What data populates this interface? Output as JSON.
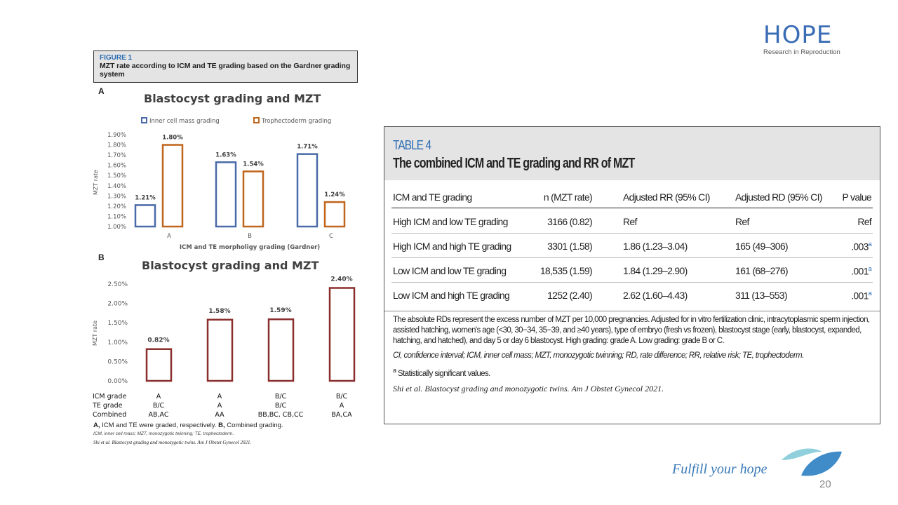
{
  "logo": {
    "name": "HOPE",
    "tagline": "Research in Reproduction"
  },
  "figure": {
    "label": "FIGURE 1",
    "title": "MZT rate according to ICM and TE grading based on the Gardner grading system",
    "caption_a": "A,",
    "caption_a_text": " ICM and TE were graded, respectively. ",
    "caption_b": "B,",
    "caption_b_text": " Combined grading.",
    "abbrev": "ICM, inner cell mass; MZT, monozygotic twinning; TE, trophectoderm.",
    "citation": "Shi et al. Blastocyst grading and monozygotic twins. Am J Obstet Gynecol 2021."
  },
  "chart_data": [
    {
      "panel": "A",
      "type": "bar",
      "title": "Blastocyst grading and MZT",
      "xlabel": "ICM and TE morpholigy grading (Gardner)",
      "ylabel": "MZT rate",
      "categories": [
        "A",
        "B",
        "C"
      ],
      "ylim": [
        1.0,
        1.9
      ],
      "yticks": [
        "1.00%",
        "1.10%",
        "1.20%",
        "1.30%",
        "1.40%",
        "1.50%",
        "1.60%",
        "1.70%",
        "1.80%",
        "1.90%"
      ],
      "legend_position": "top",
      "series": [
        {
          "name": "Inner cell mass grading",
          "color": "#4a6aa8",
          "values": [
            1.21,
            1.63,
            1.71
          ],
          "labels": [
            "1.21%",
            "1.63%",
            "1.71%"
          ]
        },
        {
          "name": "Trophectoderm grading",
          "color": "#c0651c",
          "values": [
            1.8,
            1.54,
            1.24
          ],
          "labels": [
            "1.80%",
            "1.54%",
            "1.24%"
          ]
        }
      ]
    },
    {
      "panel": "B",
      "type": "bar",
      "title": "Blastocyst grading and MZT",
      "ylabel": "MZT rate",
      "ylim": [
        0,
        2.5
      ],
      "yticks": [
        "0.00%",
        "0.50%",
        "1.00%",
        "1.50%",
        "2.00%",
        "2.50%"
      ],
      "color": "#8b2e2e",
      "values": [
        0.82,
        1.58,
        1.59,
        2.4
      ],
      "labels": [
        "0.82%",
        "1.58%",
        "1.59%",
        "2.40%"
      ],
      "row_labels": [
        "ICM grade",
        "TE grade",
        "Combined"
      ],
      "icm_grade": [
        "A",
        "A",
        "B/C",
        "B/C"
      ],
      "te_grade": [
        "B/C",
        "A",
        "B/C",
        "A"
      ],
      "combined": [
        "AB,AC",
        "AA",
        "BB,BC, CB,CC",
        "BA,CA"
      ]
    }
  ],
  "table": {
    "label": "TABLE 4",
    "title": "The combined ICM and TE grading and RR of MZT",
    "headers": [
      "ICM and TE grading",
      "n (MZT rate)",
      "Adjusted RR (95% CI)",
      "Adjusted RD (95% CI)",
      "P value"
    ],
    "rows": [
      {
        "grading": "High ICM and low TE grading",
        "n": "3166 (0.82)",
        "rr": "Ref",
        "rd": "Ref",
        "p": "Ref",
        "sup": ""
      },
      {
        "grading": "High ICM and high TE grading",
        "n": "3301 (1.58)",
        "rr": "1.86 (1.23–3.04)",
        "rd": "165 (49–306)",
        "p": ".003",
        "sup": "a"
      },
      {
        "grading": "Low ICM and low TE grading",
        "n": "18,535 (1.59)",
        "rr": "1.84 (1.29–2.90)",
        "rd": "161 (68–276)",
        "p": ".001",
        "sup": "a"
      },
      {
        "grading": "Low ICM and high TE grading",
        "n": "1252 (2.40)",
        "rr": "2.62 (1.60–4.43)",
        "rd": "311 (13–553)",
        "p": ".001",
        "sup": "a"
      }
    ],
    "note1": "The absolute RDs represent the excess number of MZT per 10,000 pregnancies. Adjusted for in vitro fertilization clinic, intracytoplasmic sperm injection, assisted hatching, women's age (<30, 30−34, 35−39, and ≥40 years), type of embryo (fresh vs frozen), blastocyst stage (early, blastocyst, expanded, hatching, and hatched), and day 5 or day 6 blastocyst. High grading: grade A. Low grading: grade B or C.",
    "note2": "CI, confidence interval; ICM, inner cell mass; MZT, monozygotic twinning; RD, rate difference; RR, relative risk; TE, trophectoderm.",
    "note3_sup": "a",
    "note3": " Statistically significant values.",
    "citation": "Shi et al. Blastocyst grading and monozygotic twins. Am J Obstet Gynecol 2021."
  },
  "footer": {
    "slogan": "Fulfill your hope",
    "page_number": "20"
  }
}
